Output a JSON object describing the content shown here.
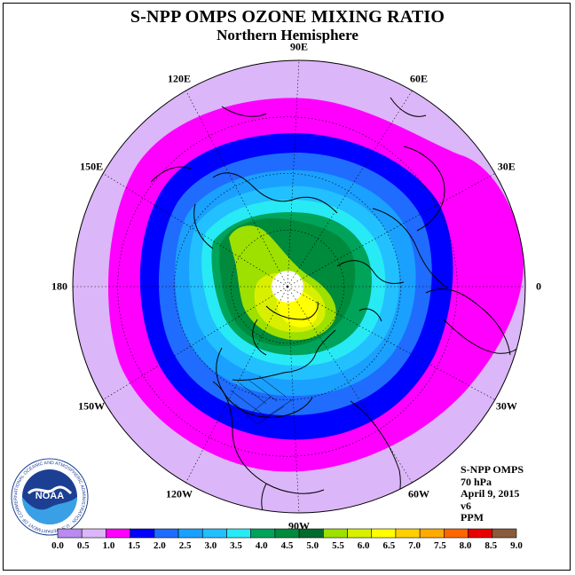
{
  "title": "S-NPP OMPS OZONE MIXING RATIO",
  "subtitle": "Northern Hemisphere",
  "longitude_labels": [
    {
      "text": "90E"
    },
    {
      "text": "60E"
    },
    {
      "text": "30E"
    },
    {
      "text": "0"
    },
    {
      "text": "30W"
    },
    {
      "text": "60W"
    },
    {
      "text": "90W"
    },
    {
      "text": "120W"
    },
    {
      "text": "150W"
    },
    {
      "text": "180"
    },
    {
      "text": "150E"
    },
    {
      "text": "120E"
    }
  ],
  "info": {
    "instrument": "S-NPP OMPS",
    "pressure": "70 hPa",
    "date": "April 9, 2015",
    "version": "v6",
    "units": "PPM"
  },
  "colorbar": {
    "labels": [
      "0.0",
      "0.5",
      "1.0",
      "1.5",
      "2.0",
      "2.5",
      "3.0",
      "3.5",
      "4.0",
      "4.5",
      "5.0",
      "5.5",
      "6.0",
      "6.5",
      "7.0",
      "7.5",
      "8.0",
      "8.5",
      "9.0"
    ],
    "colors": [
      "#b98af0",
      "#dbb6f8",
      "#ff00ff",
      "#0000ff",
      "#1f6cff",
      "#1aa0ff",
      "#22c0ff",
      "#28eaf5",
      "#00a35a",
      "#008a3c",
      "#006b2e",
      "#9ee000",
      "#d8f000",
      "#ffff00",
      "#ffd000",
      "#ffaa00",
      "#ff6600",
      "#e80000",
      "#8b5a3c"
    ]
  },
  "logo": {
    "text": "NOAA",
    "ring_text": "NATIONAL OCEANIC AND ATMOSPHERIC ADMINISTRATION · U.S. DEPARTMENT OF COMMERCE"
  },
  "map_colors": {
    "outer": "#dbb6f8",
    "level1": "#ff00ff",
    "level2": "#0000ff",
    "level3": "#1f6cff",
    "level4": "#1aa0ff",
    "level5": "#22c0ff",
    "level6": "#28eaf5",
    "level7": "#00a35a",
    "level8": "#008a3c",
    "level9": "#9ee000",
    "level10": "#d8f000",
    "level11": "#ffff00",
    "pole": "#ffffff"
  }
}
